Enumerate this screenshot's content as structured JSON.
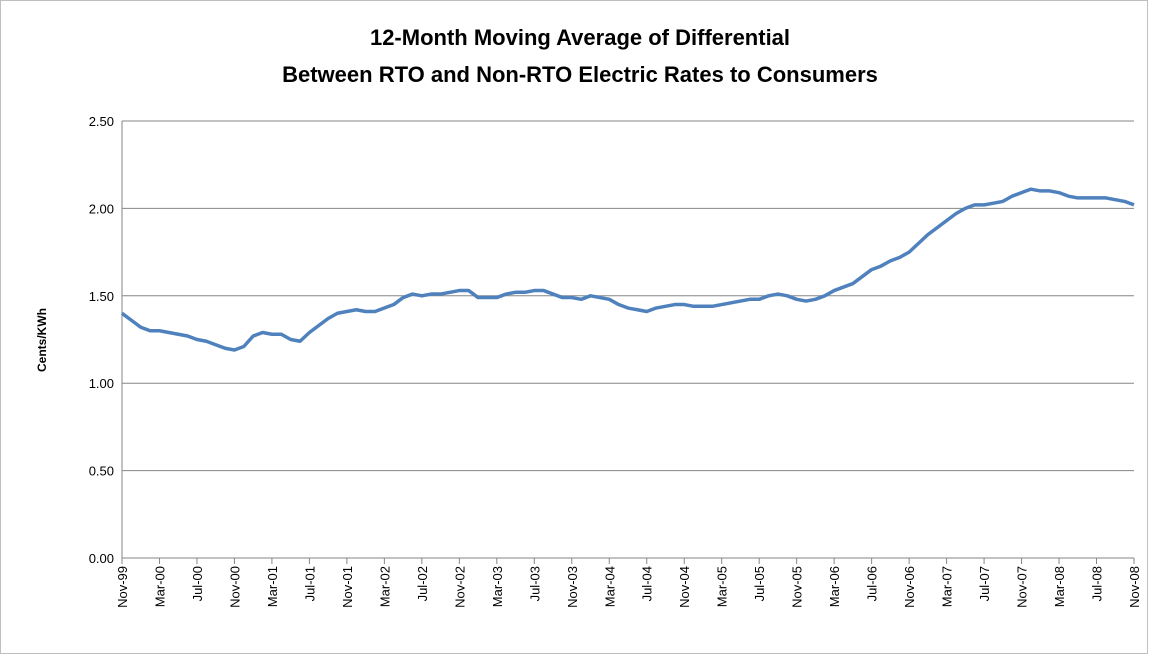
{
  "chart_data": {
    "type": "line",
    "title": [
      "12-Month Moving Average of Differential",
      "Between RTO and Non-RTO Electric Rates to Consumers"
    ],
    "y_label": "Cents/KWh",
    "categories": [
      "Nov-99",
      null,
      null,
      null,
      "Mar-00",
      null,
      null,
      null,
      "Jul-00",
      null,
      null,
      null,
      "Nov-00",
      null,
      null,
      null,
      "Mar-01",
      null,
      null,
      null,
      "Jul-01",
      null,
      null,
      null,
      "Nov-01",
      null,
      null,
      null,
      "Mar-02",
      null,
      null,
      null,
      "Jul-02",
      null,
      null,
      null,
      "Nov-02",
      null,
      null,
      null,
      "Mar-03",
      null,
      null,
      null,
      "Jul-03",
      null,
      null,
      null,
      "Nov-03",
      null,
      null,
      null,
      "Mar-04",
      null,
      null,
      null,
      "Jul-04",
      null,
      null,
      null,
      "Nov-04",
      null,
      null,
      null,
      "Mar-05",
      null,
      null,
      null,
      "Jul-05",
      null,
      null,
      null,
      "Nov-05",
      null,
      null,
      null,
      "Mar-06",
      null,
      null,
      null,
      "Jul-06",
      null,
      null,
      null,
      "Nov-06",
      null,
      null,
      null,
      "Mar-07",
      null,
      null,
      null,
      "Jul-07",
      null,
      null,
      null,
      "Nov-07",
      null,
      null,
      null,
      "Mar-08",
      null,
      null,
      null,
      "Jul-08",
      null,
      null,
      null,
      "Nov-08"
    ],
    "series": [
      {
        "color": "#4f81bd",
        "values": [
          1.4,
          1.36,
          1.32,
          1.3,
          1.3,
          1.29,
          1.28,
          1.27,
          1.25,
          1.24,
          1.22,
          1.2,
          1.19,
          1.21,
          1.27,
          1.29,
          1.28,
          1.28,
          1.25,
          1.24,
          1.29,
          1.33,
          1.37,
          1.4,
          1.41,
          1.42,
          1.41,
          1.41,
          1.43,
          1.45,
          1.49,
          1.51,
          1.5,
          1.51,
          1.51,
          1.52,
          1.53,
          1.53,
          1.49,
          1.49,
          1.49,
          1.51,
          1.52,
          1.52,
          1.53,
          1.53,
          1.51,
          1.49,
          1.49,
          1.48,
          1.5,
          1.49,
          1.48,
          1.45,
          1.43,
          1.42,
          1.41,
          1.43,
          1.44,
          1.45,
          1.45,
          1.44,
          1.44,
          1.44,
          1.45,
          1.46,
          1.47,
          1.48,
          1.48,
          1.5,
          1.51,
          1.5,
          1.48,
          1.47,
          1.48,
          1.5,
          1.53,
          1.55,
          1.57,
          1.61,
          1.65,
          1.67,
          1.7,
          1.72,
          1.75,
          1.8,
          1.85,
          1.89,
          1.93,
          1.97,
          2.0,
          2.02,
          2.02,
          2.03,
          2.04,
          2.07,
          2.09,
          2.11,
          2.1,
          2.1,
          2.09,
          2.07,
          2.06,
          2.06,
          2.06,
          2.06,
          2.05,
          2.04,
          2.02
        ]
      }
    ],
    "ylim": [
      0,
      2.5
    ],
    "yticks": [
      {
        "value": 0,
        "label": "0.00"
      },
      {
        "value": 0.5,
        "label": "0.50"
      },
      {
        "value": 1,
        "label": "1.00"
      },
      {
        "value": 1.5,
        "label": "1.50"
      },
      {
        "value": 2,
        "label": "2.00"
      },
      {
        "value": 2.5,
        "label": "2.50"
      }
    ],
    "grid": true
  }
}
